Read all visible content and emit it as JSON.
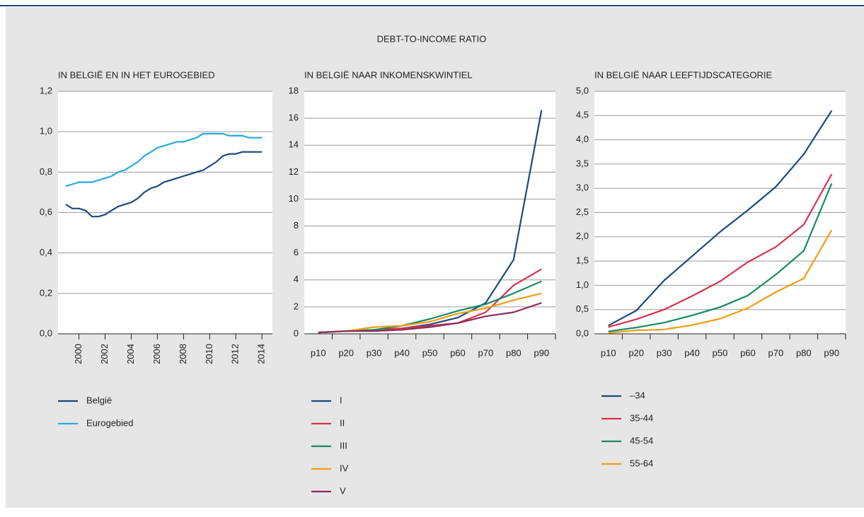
{
  "title": "DEBT-TO-INCOME RATIO",
  "chart_data": [
    {
      "type": "line",
      "title": "IN BELGIË EN IN HET EUROGEBIED",
      "x": [
        1999,
        1999.5,
        2000,
        2000.5,
        2001,
        2001.5,
        2002,
        2002.5,
        2003,
        2003.5,
        2004,
        2004.5,
        2005,
        2005.5,
        2006,
        2006.5,
        2007,
        2007.5,
        2008,
        2008.5,
        2009,
        2009.5,
        2010,
        2010.5,
        2011,
        2011.5,
        2012,
        2012.5,
        2013,
        2013.5,
        2014
      ],
      "xlim": [
        1998.4,
        2014.8
      ],
      "xticks": [
        2000,
        2002,
        2004,
        2006,
        2008,
        2010,
        2012,
        2014
      ],
      "ylim": [
        0,
        1.2
      ],
      "yticks": [
        {
          "value": 0,
          "label": "0,0"
        },
        {
          "value": 0.2,
          "label": "0,2"
        },
        {
          "value": 0.4,
          "label": "0,4"
        },
        {
          "value": 0.6,
          "label": "0,6"
        },
        {
          "value": 0.8,
          "label": "0,8"
        },
        {
          "value": 1,
          "label": "1,0"
        },
        {
          "value": 1.2,
          "label": "1,2"
        }
      ],
      "grid": true,
      "series": [
        {
          "name": "België",
          "color": "#1a4a80",
          "values": [
            0.64,
            0.62,
            0.62,
            0.61,
            0.58,
            0.58,
            0.59,
            0.61,
            0.63,
            0.64,
            0.65,
            0.67,
            0.7,
            0.72,
            0.73,
            0.75,
            0.76,
            0.77,
            0.78,
            0.79,
            0.8,
            0.81,
            0.83,
            0.85,
            0.88,
            0.89,
            0.89,
            0.9,
            0.9,
            0.9,
            0.9
          ]
        },
        {
          "name": "Eurogebied",
          "color": "#29a8df",
          "values": [
            0.73,
            0.74,
            0.75,
            0.75,
            0.75,
            0.76,
            0.77,
            0.78,
            0.8,
            0.81,
            0.83,
            0.85,
            0.88,
            0.9,
            0.92,
            0.93,
            0.94,
            0.95,
            0.95,
            0.96,
            0.97,
            0.99,
            0.99,
            0.99,
            0.99,
            0.98,
            0.98,
            0.98,
            0.97,
            0.97,
            0.97
          ]
        }
      ]
    },
    {
      "type": "line",
      "title": "IN BELGIË NAAR INKOMENSKWINTIEL",
      "categories": [
        "p10",
        "p20",
        "p30",
        "p40",
        "p50",
        "p60",
        "p70",
        "p80",
        "p90"
      ],
      "ylim": [
        0,
        18
      ],
      "yticks": [
        0,
        2,
        4,
        6,
        8,
        10,
        12,
        14,
        16,
        18
      ],
      "grid": true,
      "series": [
        {
          "name": "I",
          "color": "#1a4a80",
          "values": [
            0.1,
            0.2,
            0.3,
            0.4,
            0.7,
            1.2,
            2.3,
            5.5,
            16.6
          ]
        },
        {
          "name": "II",
          "color": "#d6334e",
          "values": [
            0.1,
            0.2,
            0.3,
            0.4,
            0.6,
            0.8,
            1.6,
            3.6,
            4.8
          ]
        },
        {
          "name": "III",
          "color": "#168a68",
          "values": [
            0.1,
            0.2,
            0.3,
            0.6,
            1.1,
            1.7,
            2.2,
            3.0,
            3.9
          ]
        },
        {
          "name": "IV",
          "color": "#f39c12",
          "values": [
            0.1,
            0.2,
            0.5,
            0.6,
            0.9,
            1.5,
            1.9,
            2.5,
            3.0
          ]
        },
        {
          "name": "V",
          "color": "#8b2b5e",
          "values": [
            0.1,
            0.2,
            0.2,
            0.3,
            0.5,
            0.8,
            1.3,
            1.6,
            2.3
          ]
        }
      ]
    },
    {
      "type": "line",
      "title": "IN BELGIË NAAR LEEFTIJDSCATEGORIE",
      "categories": [
        "p10",
        "p20",
        "p30",
        "p40",
        "p50",
        "p60",
        "p70",
        "p80",
        "p90"
      ],
      "ylim": [
        0,
        5
      ],
      "yticks": [
        {
          "value": 0,
          "label": "0,0"
        },
        {
          "value": 0.5,
          "label": "0,5"
        },
        {
          "value": 1,
          "label": "1,0"
        },
        {
          "value": 1.5,
          "label": "1,5"
        },
        {
          "value": 2,
          "label": "2,0"
        },
        {
          "value": 2.5,
          "label": "2,5"
        },
        {
          "value": 3,
          "label": "3,0"
        },
        {
          "value": 3.5,
          "label": "3,5"
        },
        {
          "value": 4,
          "label": "4,0"
        },
        {
          "value": 4.5,
          "label": "4,5"
        },
        {
          "value": 5,
          "label": "5,0"
        }
      ],
      "grid": true,
      "series": [
        {
          "name": "–34",
          "color": "#1a4a80",
          "values": [
            0.17,
            0.48,
            1.1,
            1.6,
            2.1,
            2.55,
            3.03,
            3.7,
            4.6
          ]
        },
        {
          "name": "35-44",
          "color": "#d6334e",
          "values": [
            0.14,
            0.3,
            0.5,
            0.78,
            1.08,
            1.48,
            1.79,
            2.25,
            3.29
          ]
        },
        {
          "name": "45-54",
          "color": "#168a68",
          "values": [
            0.05,
            0.13,
            0.23,
            0.38,
            0.55,
            0.79,
            1.22,
            1.71,
            3.1
          ]
        },
        {
          "name": "55-64",
          "color": "#f39c12",
          "values": [
            0.02,
            0.07,
            0.09,
            0.18,
            0.31,
            0.53,
            0.86,
            1.14,
            2.14
          ]
        }
      ]
    }
  ]
}
